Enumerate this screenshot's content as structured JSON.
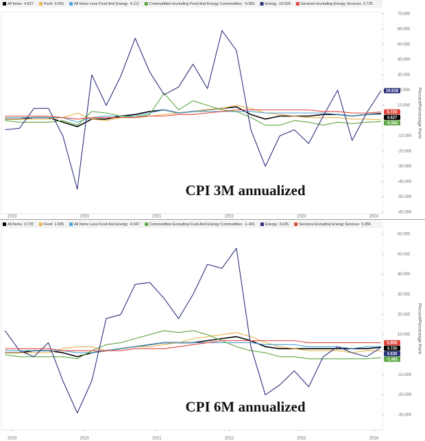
{
  "chart_data": [
    {
      "type": "line",
      "title": "CPI 3M annualized",
      "y_axis_label": "Percent/Percentage Point",
      "x": [
        2018.9,
        2019.1,
        2019.3,
        2019.5,
        2019.7,
        2019.9,
        2020.1,
        2020.3,
        2020.5,
        2020.7,
        2020.9,
        2021.1,
        2021.3,
        2021.5,
        2021.7,
        2021.9,
        2022.1,
        2022.3,
        2022.5,
        2022.7,
        2022.9,
        2023.1,
        2023.3,
        2023.5,
        2023.7,
        2023.9,
        2024.1
      ],
      "xlim": [
        2018.85,
        2024.12
      ],
      "xticks": [
        2019,
        2020,
        2021,
        2022,
        2023,
        2024
      ],
      "ylim": [
        -61,
        71
      ],
      "yticks": [
        {
          "value": 70,
          "label": "70.000"
        },
        {
          "value": 60,
          "label": "60.000"
        },
        {
          "value": 50,
          "label": "50.000"
        },
        {
          "value": 40,
          "label": "40.000"
        },
        {
          "value": 30,
          "label": "30.000"
        },
        {
          "value": 20,
          "label": "20.000"
        },
        {
          "value": 10,
          "label": "10.000"
        },
        {
          "value": -10,
          "label": "-10.000"
        },
        {
          "value": -20,
          "label": "-20.000"
        },
        {
          "value": -30,
          "label": "-30.000"
        },
        {
          "value": -40,
          "label": "-40.000"
        },
        {
          "value": -50,
          "label": "-50.000"
        },
        {
          "value": -60,
          "label": "-60.000"
        }
      ],
      "series": [
        {
          "name": "All Items",
          "legend_value": "4.627",
          "flag": true,
          "color": "#000000",
          "values": [
            1,
            1,
            2,
            2,
            -1,
            -4,
            1,
            1,
            3,
            4,
            6,
            7,
            5,
            6,
            7,
            8,
            9,
            4,
            1,
            3,
            3,
            3,
            4,
            4,
            3,
            4,
            4.627
          ]
        },
        {
          "name": "Food",
          "legend_value": "0.555",
          "flag": false,
          "color": "#e8b44c",
          "values": [
            1,
            1,
            1,
            1,
            2,
            5,
            1,
            0,
            2,
            3,
            3,
            4,
            5,
            6,
            7,
            8,
            10,
            8,
            5,
            4,
            3,
            2,
            2,
            2,
            1,
            1,
            0.555
          ]
        },
        {
          "name": "All Items Less Food And Energy",
          "legend_value": "4.112",
          "flag": false,
          "color": "#4ba3d8",
          "values": [
            2,
            2,
            2,
            2,
            2,
            -1,
            2,
            3,
            3,
            3,
            5,
            7,
            5,
            6,
            6,
            6,
            6,
            6,
            5,
            5,
            5,
            5,
            5,
            4,
            3,
            4,
            4.112
          ]
        },
        {
          "name": "Commodities Excluding Food And Energy Commodities",
          "legend_value": "-0.583",
          "flag": true,
          "color": "#5aa640",
          "values": [
            0,
            -1,
            -1,
            -1,
            0,
            -3,
            6,
            5,
            3,
            2,
            4,
            18,
            7,
            13,
            10,
            7,
            6,
            2,
            -3,
            -3,
            0,
            -1,
            -3,
            -1,
            -2,
            -1,
            -0.583
          ]
        },
        {
          "name": "Energy",
          "legend_value": "19.628",
          "flag": true,
          "color": "#2a2f7a",
          "values": [
            -6,
            -5,
            8,
            8,
            -10,
            -45,
            30,
            10,
            29,
            54,
            32,
            17,
            22,
            37,
            21,
            59,
            46,
            -6,
            -30,
            -10,
            -6,
            -15,
            3,
            20,
            -13,
            5,
            19.628
          ]
        },
        {
          "name": "Services Excluding Energy Services",
          "legend_value": "5.725",
          "flag": true,
          "color": "#e0443a",
          "values": [
            3,
            3,
            3,
            3,
            2,
            1,
            2,
            2,
            2,
            2,
            3,
            3,
            4,
            4,
            5,
            6,
            7,
            7,
            7,
            7,
            7,
            7,
            6,
            6,
            5,
            5,
            5.725
          ]
        }
      ]
    },
    {
      "type": "line",
      "title": "CPI 6M annualized",
      "y_axis_label": "Percent/Percentage Point",
      "x": [
        2018.9,
        2019.1,
        2019.3,
        2019.5,
        2019.7,
        2019.9,
        2020.1,
        2020.3,
        2020.5,
        2020.7,
        2020.9,
        2021.1,
        2021.3,
        2021.5,
        2021.7,
        2021.9,
        2022.1,
        2022.3,
        2022.5,
        2022.7,
        2022.9,
        2023.1,
        2023.3,
        2023.5,
        2023.7,
        2023.9,
        2024.1
      ],
      "xlim": [
        2018.85,
        2024.12
      ],
      "xticks": [
        2019,
        2020,
        2021,
        2022,
        2023,
        2024
      ],
      "ylim": [
        -37.5,
        63.4
      ],
      "yticks": [
        {
          "value": 60,
          "label": "60.000"
        },
        {
          "value": 50,
          "label": "50.000"
        },
        {
          "value": 40,
          "label": "40.000"
        },
        {
          "value": 30,
          "label": "30.000"
        },
        {
          "value": 20,
          "label": "20.000"
        },
        {
          "value": 10,
          "label": "10.000"
        },
        {
          "value": -10,
          "label": "-10.000"
        },
        {
          "value": -20,
          "label": "-20.000"
        },
        {
          "value": -30,
          "label": "-30.000"
        }
      ],
      "series": [
        {
          "name": "All Items",
          "legend_value": "3.725",
          "flag": true,
          "color": "#000000",
          "values": [
            1,
            1,
            2,
            2,
            1,
            -1,
            1,
            2,
            3,
            4,
            5,
            6,
            6,
            6,
            7,
            8,
            9,
            7,
            4,
            3,
            3,
            3,
            3,
            3,
            3,
            3,
            3.725
          ]
        },
        {
          "name": "Food",
          "legend_value": "1.835",
          "flag": false,
          "color": "#e8b44c",
          "values": [
            1,
            1,
            1,
            1,
            3,
            4,
            4,
            2,
            3,
            4,
            4,
            5,
            6,
            8,
            9,
            10,
            11,
            9,
            6,
            4,
            3,
            2,
            2,
            2,
            1,
            2,
            1.835
          ]
        },
        {
          "name": "All Items Less Food And Energy",
          "legend_value": "4.047",
          "flag": false,
          "color": "#4ba3d8",
          "values": [
            2,
            2,
            2,
            2,
            2,
            1,
            1,
            2,
            3,
            4,
            5,
            6,
            6,
            6,
            6,
            6,
            6,
            6,
            5,
            5,
            5,
            4,
            4,
            4,
            3,
            4,
            4.047
          ]
        },
        {
          "name": "Commodities Excluding Food And Energy Commodities",
          "legend_value": "-1.491",
          "flag": true,
          "color": "#5aa640",
          "values": [
            0,
            -1,
            -1,
            -1,
            -1,
            -2,
            2,
            5,
            6,
            8,
            10,
            12,
            11,
            12,
            10,
            7,
            4,
            2,
            1,
            -1,
            -1,
            -2,
            -2,
            -2,
            -2,
            -2,
            -1.491
          ]
        },
        {
          "name": "Energy",
          "legend_value": "3.635",
          "flag": true,
          "color": "#2a2f7a",
          "values": [
            12,
            2,
            -1,
            6,
            -13,
            -29,
            -13,
            18,
            20,
            35,
            36,
            28,
            18,
            30,
            45,
            43,
            53,
            4,
            -20,
            -15,
            -8,
            -16,
            -1,
            4,
            1,
            -1,
            3.635
          ]
        },
        {
          "name": "Services Excluding Energy Services",
          "legend_value": "5.955",
          "flag": true,
          "color": "#e0443a",
          "values": [
            3,
            3,
            3,
            3,
            2,
            2,
            2,
            2,
            2,
            3,
            3,
            3,
            4,
            5,
            6,
            7,
            7,
            7,
            7,
            7,
            7,
            6,
            6,
            6,
            6,
            6,
            5.955
          ]
        }
      ]
    }
  ]
}
